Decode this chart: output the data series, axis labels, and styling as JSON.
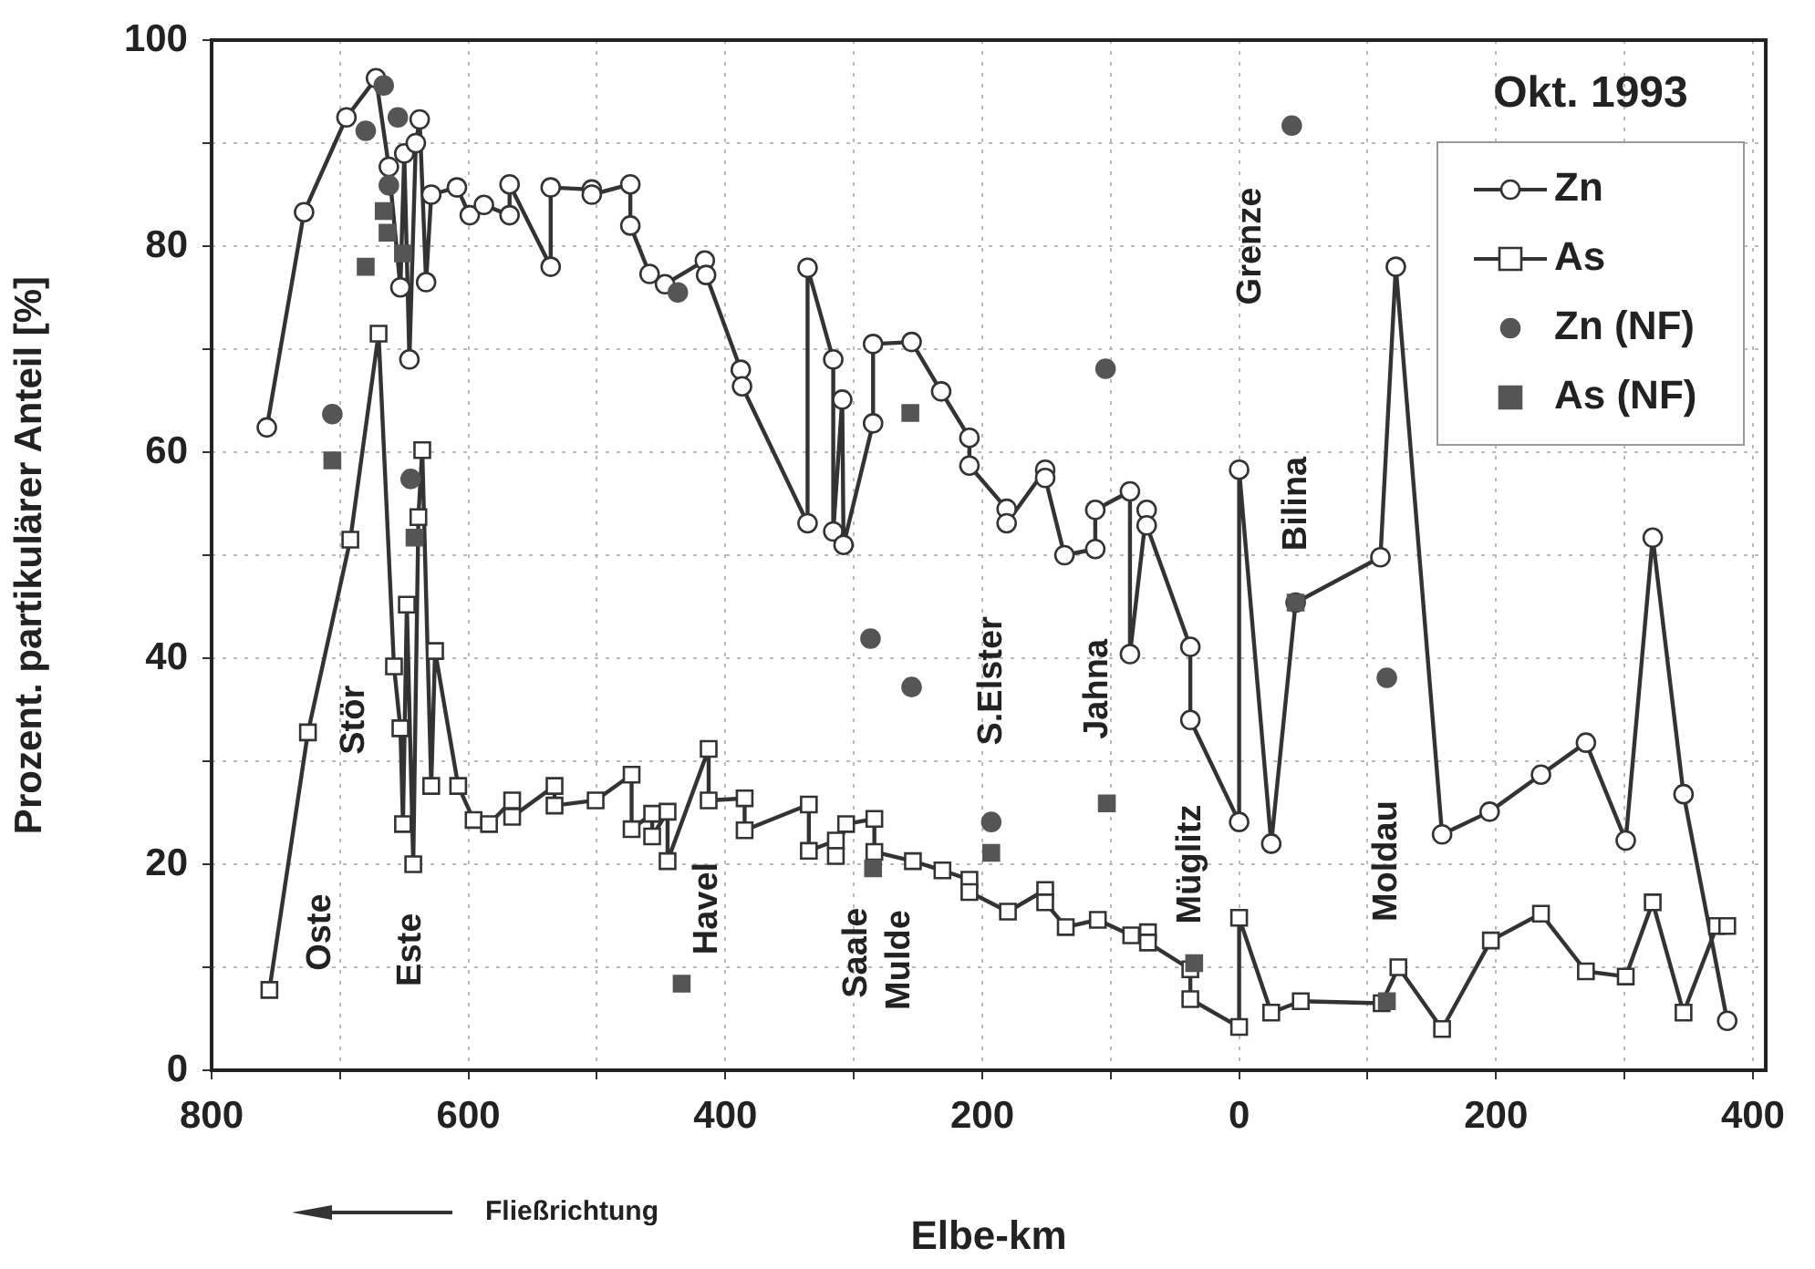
{
  "chart_data": {
    "type": "line",
    "xlabel": "Elbe-km",
    "ylabel": "Prozent. partikulärer Anteil [%]",
    "legend_title": "Okt. 1993",
    "legend": "top right",
    "grid": true,
    "xlim": [
      800,
      -410
    ],
    "xticks": [
      800,
      {
        "value": 700,
        "label": null
      },
      600,
      {
        "value": 500,
        "label": null
      },
      400,
      {
        "value": 300,
        "label": null
      },
      200,
      {
        "value": 100,
        "label": null
      },
      0,
      {
        "value": -100,
        "label": null
      },
      {
        "value": -200,
        "label": "200"
      },
      {
        "value": -300,
        "label": null
      },
      {
        "value": -400,
        "label": "400"
      }
    ],
    "ylim": [
      0,
      100
    ],
    "yticks": [
      0,
      {
        "value": 10,
        "label": null
      },
      20,
      {
        "value": 30,
        "label": null
      },
      40,
      {
        "value": 50,
        "label": null
      },
      60,
      {
        "value": 70,
        "label": null
      },
      80,
      {
        "value": 90,
        "label": null
      },
      100
    ],
    "series": [
      {
        "name": "Zn",
        "marker": "circle",
        "color": "#333333",
        "x": [
          757,
          728,
          695,
          672,
          662,
          653,
          650,
          646,
          641,
          638,
          633,
          629,
          609,
          599,
          588,
          568,
          568,
          536,
          536,
          504,
          504,
          474,
          474,
          459,
          447,
          416,
          415,
          388,
          387,
          336,
          336,
          316,
          316,
          309,
          308,
          285,
          285,
          255,
          232,
          210,
          210,
          181,
          181,
          151,
          151,
          136,
          112,
          112,
          85,
          85,
          72,
          72,
          38,
          38,
          0,
          0,
          -25,
          -44,
          -110,
          -122,
          -158,
          -195,
          -235,
          -270,
          -301,
          -322,
          -346,
          -380
        ],
        "values": [
          62.4,
          83.3,
          92.5,
          96.3,
          87.7,
          76,
          89,
          69,
          90,
          92.3,
          76.5,
          85,
          85.7,
          83,
          84,
          83,
          86,
          78,
          85.7,
          85.5,
          85,
          86,
          82,
          77.3,
          76.3,
          78.6,
          77.2,
          68,
          66.4,
          53.1,
          77.9,
          69,
          52.3,
          65.1,
          51,
          62.8,
          70.5,
          70.7,
          65.9,
          61.4,
          58.7,
          54.5,
          53.1,
          58.3,
          57.5,
          50,
          50.6,
          54.4,
          56.2,
          40.4,
          54.4,
          52.9,
          41.1,
          34,
          24.1,
          58.3,
          22,
          45.4,
          49.8,
          78,
          22.9,
          25.1,
          28.7,
          31.8,
          22.3,
          51.7,
          26.8,
          4.8
        ]
      },
      {
        "name": "As",
        "marker": "square",
        "color": "#333333",
        "x": [
          755,
          725,
          692,
          670,
          658,
          653,
          651,
          648,
          643,
          639,
          636,
          629,
          626,
          608,
          596,
          584,
          566,
          566,
          533,
          533,
          501,
          473,
          473,
          457,
          457,
          445,
          445,
          413,
          413,
          385,
          385,
          335,
          335,
          314,
          314,
          306,
          284,
          284,
          254,
          231,
          210,
          210,
          180,
          151,
          151,
          135,
          110,
          84,
          71,
          71,
          38,
          38,
          0,
          0,
          -25,
          -48,
          -111,
          -124,
          -158,
          -196,
          -235,
          -270,
          -301,
          -322,
          -346,
          -372,
          -380
        ],
        "values": [
          7.8,
          32.8,
          51.5,
          71.5,
          39.2,
          33.2,
          23.9,
          45.2,
          20,
          53.7,
          60.2,
          27.6,
          40.7,
          27.6,
          24.3,
          23.9,
          26.2,
          24.6,
          27.6,
          25.7,
          26.2,
          28.7,
          23.4,
          24.9,
          22.7,
          25.1,
          20.3,
          31.2,
          26.2,
          26.4,
          23.3,
          25.8,
          21.3,
          22.3,
          20.8,
          23.9,
          24.4,
          21.2,
          20.3,
          19.4,
          18.5,
          17.3,
          15.4,
          17.5,
          16.3,
          13.9,
          14.6,
          13.1,
          13.4,
          12.4,
          9.8,
          6.9,
          4.2,
          14.8,
          5.6,
          6.7,
          6.5,
          10,
          4,
          12.6,
          15.2,
          9.6,
          9.1,
          16.3,
          5.6,
          14,
          14
        ]
      },
      {
        "name": "Zn (NF)",
        "type": "scatter",
        "marker": "circle",
        "color": "#555555",
        "x": [
          706,
          680,
          666,
          662,
          655,
          645,
          437,
          287,
          255,
          193,
          104,
          -41,
          -115
        ],
        "values": [
          63.7,
          91.2,
          95.6,
          85.9,
          92.5,
          57.4,
          75.5,
          41.9,
          37.2,
          24.1,
          68.1,
          91.7,
          38.1
        ]
      },
      {
        "name": "As (NF)",
        "type": "scatter",
        "marker": "square",
        "color": "#555555",
        "x": [
          706,
          680,
          666,
          663,
          651,
          642,
          434,
          285,
          256,
          193,
          103,
          35,
          -44,
          -115
        ],
        "values": [
          59.2,
          78,
          83.4,
          81.3,
          79.3,
          51.7,
          8.4,
          19.6,
          63.8,
          21.1,
          25.9,
          10.4,
          45.4,
          6.7
        ]
      }
    ],
    "annotations": [
      "Oste",
      "Stör",
      "Este",
      "Havel",
      "Saale",
      "Mulde",
      "S.Elster",
      "Jahna",
      "Müglitz",
      "Grenze",
      "Bilina",
      "Moldau",
      "Fließrichtung"
    ]
  }
}
